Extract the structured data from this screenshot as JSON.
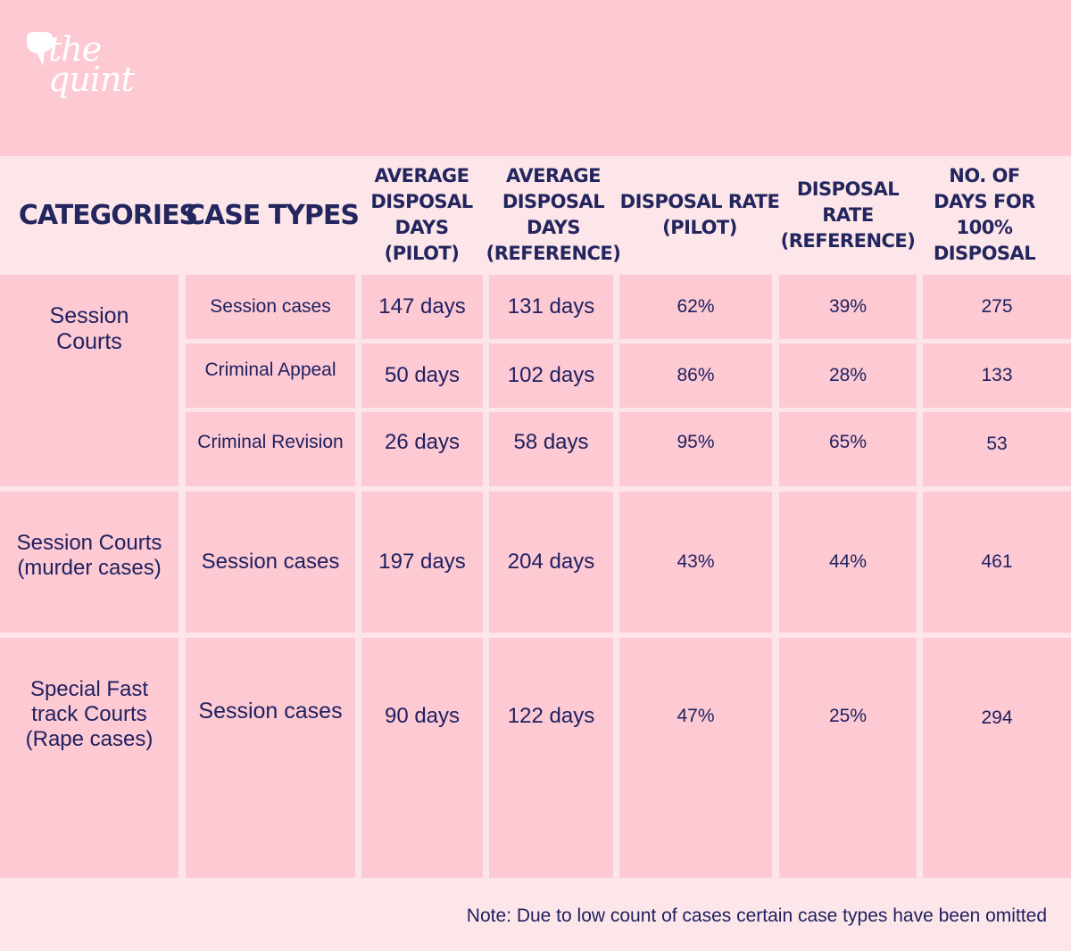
{
  "brand": {
    "line1": "the",
    "line2": "quint"
  },
  "headers": {
    "categories": "CATEGORIES",
    "case_types": "CASE TYPES",
    "avg_pilot": "AVERAGE\nDISPOSAL\nDAYS\n(PILOT)",
    "avg_reference": "AVERAGE\nDISPOSAL\nDAYS\n(REFERENCE)",
    "rate_pilot": "DISPOSAL RATE\n(PILOT)",
    "rate_reference": "DISPOSAL RATE\n(REFERENCE)",
    "days_full": "NO. OF\nDAYS FOR\n100% DISPOSAL"
  },
  "groups": [
    {
      "category": "Session\nCourts",
      "rows": [
        {
          "case_type": "Session cases",
          "avg_pilot": "147 days",
          "avg_reference": "131 days",
          "rate_pilot": "62%",
          "rate_reference": "39%",
          "days_full": "275"
        },
        {
          "case_type": "Criminal Appeal",
          "avg_pilot": "50 days",
          "avg_reference": "102 days",
          "rate_pilot": "86%",
          "rate_reference": "28%",
          "days_full": "133"
        },
        {
          "case_type": "Criminal Revision",
          "avg_pilot": "26 days",
          "avg_reference": "58 days",
          "rate_pilot": "95%",
          "rate_reference": "65%",
          "days_full": "53"
        }
      ]
    },
    {
      "category": "Session Courts\n(murder cases)",
      "rows": [
        {
          "case_type": "Session cases",
          "avg_pilot": "197 days",
          "avg_reference": "204 days",
          "rate_pilot": "43%",
          "rate_reference": "44%",
          "days_full": "461"
        }
      ]
    },
    {
      "category": "Special Fast\ntrack Courts\n(Rape cases)",
      "rows": [
        {
          "case_type": "Session cases",
          "avg_pilot": "90 days",
          "avg_reference": "122 days",
          "rate_pilot": "47%",
          "rate_reference": "25%",
          "days_full": "294"
        }
      ]
    }
  ],
  "note": "Note: Due to low count of cases certain case types have been omitted",
  "colors": {
    "background": "#fde6ea",
    "cell": "#fdc9d3",
    "text": "#1f2160"
  }
}
